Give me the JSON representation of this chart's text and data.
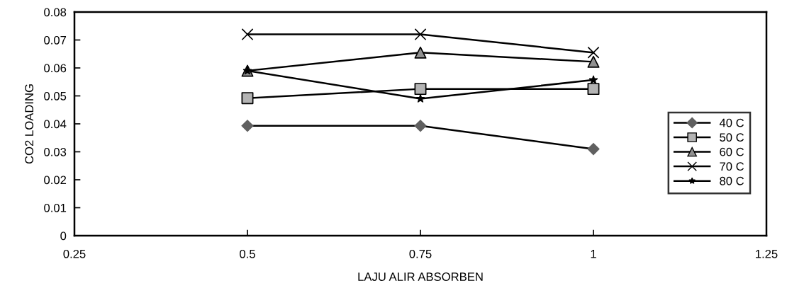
{
  "chart_data": {
    "type": "line",
    "xlabel": "LAJU ALIR ABSORBEN",
    "ylabel": "CO2 LOADING",
    "x": [
      0.5,
      0.75,
      1
    ],
    "xlim": [
      0.25,
      1.25
    ],
    "xticks": [
      0.25,
      0.5,
      0.75,
      1,
      1.25
    ],
    "ylim": [
      0,
      0.08
    ],
    "yticks": [
      0,
      0.01,
      0.02,
      0.03,
      0.04,
      0.05,
      0.06,
      0.07,
      0.08
    ],
    "grid": false,
    "legend": "right",
    "line_style": "solid",
    "series": [
      {
        "name": "40 C",
        "color": "#000000",
        "marker": "diamond",
        "colors": [
          "#606060",
          "#606060",
          "#606060"
        ],
        "values": [
          0.0393,
          0.0393,
          0.031
        ]
      },
      {
        "name": "50 C",
        "color": "#000000",
        "marker": "square",
        "colors": [
          "#b4b4b4",
          "#b4b4b4",
          "#b4b4b4"
        ],
        "values": [
          0.0492,
          0.0525,
          0.0525
        ]
      },
      {
        "name": "60 C",
        "color": "#000000",
        "marker": "triangle",
        "colors": [
          "#909090",
          "#909090",
          "#909090"
        ],
        "values": [
          0.059,
          0.0655,
          0.0622
        ]
      },
      {
        "name": "70 C",
        "color": "#000000",
        "marker": "cross",
        "values": [
          0.072,
          0.072,
          0.0655
        ]
      },
      {
        "name": "80 C",
        "color": "#000000",
        "marker": "star",
        "values": [
          0.059,
          0.049,
          0.0557
        ]
      }
    ]
  }
}
